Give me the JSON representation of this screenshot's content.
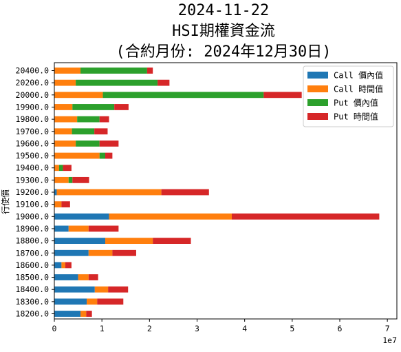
{
  "chart_data": {
    "type": "bar",
    "orientation": "horizontal",
    "stacked": true,
    "title_lines": [
      "2024-11-22",
      "HSI期權資金流",
      "(合約月份: 2024年12月30日)"
    ],
    "xlabel": "",
    "ylabel": "行使價",
    "x_offset_label": "1e7",
    "xlim": [
      0,
      7.2
    ],
    "x_ticks": [
      0,
      1,
      2,
      3,
      4,
      5,
      6,
      7
    ],
    "x_tick_labels": [
      "0",
      "1",
      "2",
      "3",
      "4",
      "5",
      "6",
      "7"
    ],
    "x_unit_multiplier": 10000000,
    "grid": false,
    "legend_position": "top-right",
    "categories": [
      "18200.0",
      "18300.0",
      "18400.0",
      "18500.0",
      "18600.0",
      "18700.0",
      "18800.0",
      "18900.0",
      "19000.0",
      "19100.0",
      "19200.0",
      "19300.0",
      "19400.0",
      "19500.0",
      "19600.0",
      "19700.0",
      "19800.0",
      "19900.0",
      "20000.0",
      "20200.0",
      "20400.0"
    ],
    "series": [
      {
        "name": "Call 價內值",
        "color": "#1f77b4",
        "values": [
          0.55,
          0.68,
          0.85,
          0.5,
          0.15,
          0.72,
          1.07,
          0.3,
          1.15,
          0.0,
          0.05,
          0.0,
          0.0,
          0.0,
          0.0,
          0.0,
          0.0,
          0.0,
          0.0,
          0.0,
          0.0
        ]
      },
      {
        "name": "Call 時間值",
        "color": "#ff7f0e",
        "values": [
          0.12,
          0.22,
          0.28,
          0.22,
          0.08,
          0.5,
          1.0,
          0.42,
          2.58,
          0.15,
          2.2,
          0.3,
          0.1,
          0.95,
          0.45,
          0.37,
          0.48,
          0.38,
          1.02,
          0.45,
          0.55
        ]
      },
      {
        "name": "Put 價內值",
        "color": "#2ca02c",
        "values": [
          0.0,
          0.0,
          0.0,
          0.0,
          0.0,
          0.0,
          0.0,
          0.0,
          0.0,
          0.0,
          0.0,
          0.08,
          0.08,
          0.12,
          0.5,
          0.47,
          0.47,
          0.88,
          3.38,
          1.72,
          1.4
        ]
      },
      {
        "name": "Put 時間值",
        "color": "#d62728",
        "values": [
          0.12,
          0.55,
          0.42,
          0.2,
          0.13,
          0.5,
          0.8,
          0.63,
          3.1,
          0.18,
          1.0,
          0.35,
          0.18,
          0.15,
          0.4,
          0.28,
          0.2,
          0.3,
          0.8,
          0.25,
          0.12
        ]
      }
    ]
  }
}
